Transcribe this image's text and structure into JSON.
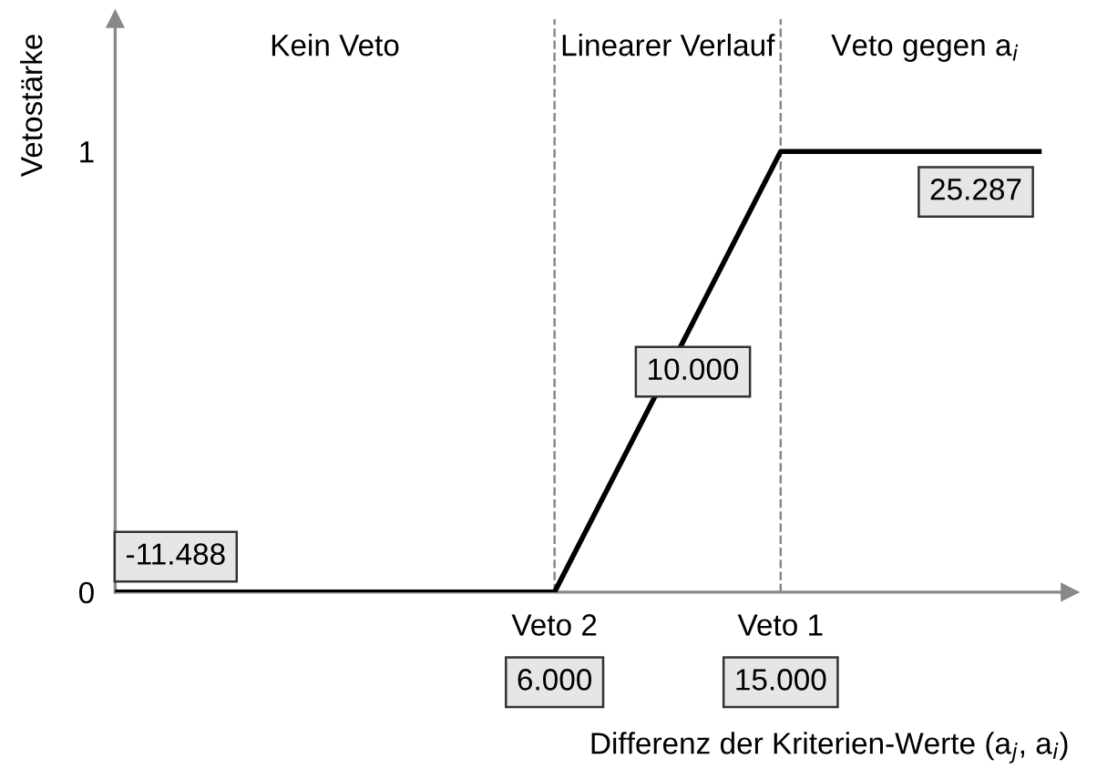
{
  "chart_data": {
    "type": "line",
    "xlabel": "Differenz der Kriterien-Werte (a$_{j}$, a$_{i}$)",
    "ylabel": "Vetostärke",
    "series": [
      {
        "color": "#000000",
        "x": [
          -11488,
          6000,
          15000,
          25287
        ],
        "values": [
          0,
          0,
          1,
          1
        ]
      }
    ],
    "xlim": [
      -11488,
      26500
    ],
    "ylim": [
      0,
      1.3
    ],
    "xticks": [
      {
        "value": 6000,
        "label": "6.000"
      },
      {
        "value": 15000,
        "label": "15.000"
      }
    ],
    "yticks": [
      0,
      1
    ],
    "ref_lines": [
      {
        "axis": "x",
        "value": 6000,
        "label": "Veto 2",
        "color": "#888888",
        "line_style": "dashed"
      },
      {
        "axis": "x",
        "value": 15000,
        "label": "Veto 1",
        "color": "#888888",
        "line_style": "dashed"
      }
    ],
    "annotations": [
      "Kein Veto",
      "Linearer Verlauf",
      "Veto gegen a$_{i}$",
      {
        "text": "-11.488",
        "x": -11488,
        "y": 0
      },
      {
        "text": "10.000",
        "x": 10500,
        "y": 0.5
      },
      {
        "text": "25.287",
        "x": 25287,
        "y": 1
      }
    ],
    "grid": false,
    "legend": false,
    "marker": "none",
    "line_style": "solid"
  }
}
